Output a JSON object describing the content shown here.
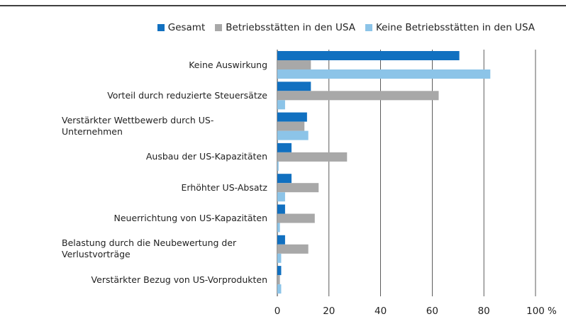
{
  "chart_data": {
    "type": "hbar",
    "categories": [
      "Keine Auswirkung",
      "Vorteil durch reduzierte Steuersätze",
      "Verstärkter Wettbewerb durch US-Unternehmen",
      "Ausbau der US-Kapazitäten",
      "Erhöhter US-Absatz",
      "Neuerrichtung von US-Kapazitäten",
      "Belastung durch die Neubewertung der Verlustvorträge",
      "Verstärkter Bezug von US-Vorprodukten"
    ],
    "series": [
      {
        "name": "Gesamt",
        "color": "#1170c0",
        "values": [
          70.5,
          13,
          11.5,
          5.5,
          5.5,
          3,
          3,
          1.5
        ]
      },
      {
        "name": "Betriebsstätten in den USA",
        "color": "#a8a8a8",
        "values": [
          13,
          62.5,
          10.5,
          27,
          16,
          14.5,
          12,
          1
        ]
      },
      {
        "name": "Keine Betriebsstätten in den USA",
        "color": "#8cc4e8",
        "values": [
          82.5,
          3,
          12,
          0.5,
          3,
          1,
          1.5,
          1.5
        ]
      }
    ],
    "xlabel": "%",
    "xlim": [
      0,
      100
    ],
    "xticks": [
      0,
      20,
      40,
      60,
      80,
      100
    ],
    "grid": true
  }
}
